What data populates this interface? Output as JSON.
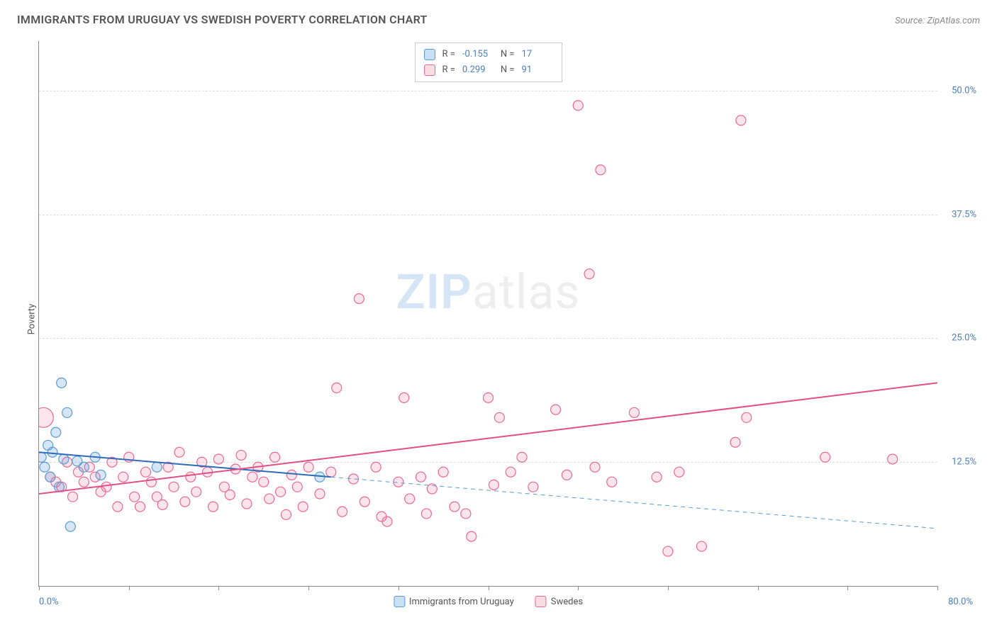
{
  "title": "IMMIGRANTS FROM URUGUAY VS SWEDISH POVERTY CORRELATION CHART",
  "source_label": "Source:",
  "source_value": "ZipAtlas.com",
  "watermark_zip": "ZIP",
  "watermark_atlas": "atlas",
  "y_axis_label": "Poverty",
  "chart": {
    "type": "scatter",
    "xlim": [
      0,
      80
    ],
    "ylim": [
      0,
      55
    ],
    "x_tick_positions": [
      0,
      8,
      16,
      24,
      32,
      40,
      48,
      56,
      64,
      72,
      80
    ],
    "x_label_min": "0.0%",
    "x_label_max": "80.0%",
    "y_ticks": [
      {
        "pos": 12.5,
        "label": "12.5%"
      },
      {
        "pos": 25.0,
        "label": "25.0%"
      },
      {
        "pos": 37.5,
        "label": "37.5%"
      },
      {
        "pos": 50.0,
        "label": "50.0%"
      }
    ],
    "background_color": "#ffffff",
    "grid_color": "#dddddd",
    "axis_color": "#888888",
    "marker_radius": 7,
    "marker_stroke_width": 1.2,
    "line_width": 2
  },
  "series": [
    {
      "name": "Immigrants from Uruguay",
      "swatch_fill": "#c9dff4",
      "swatch_stroke": "#5b9bd5",
      "marker_fill": "rgba(91,155,213,0.25)",
      "marker_stroke": "#5b9bd5",
      "line_color": "#2e6bb8",
      "dash_color": "#5b9bd5",
      "r_label": "R =",
      "r_value": "-0.155",
      "n_label": "N =",
      "n_value": "17",
      "trend": {
        "x1": 0,
        "y1": 13.5,
        "x2": 26,
        "y2": 11.0
      },
      "trend_dash": {
        "x1": 26,
        "y1": 11.0,
        "x2": 80,
        "y2": 5.8
      },
      "points": [
        [
          0.2,
          13.0
        ],
        [
          0.5,
          12.0
        ],
        [
          0.8,
          14.2
        ],
        [
          1.0,
          11.0
        ],
        [
          1.2,
          13.5
        ],
        [
          1.5,
          15.5
        ],
        [
          1.8,
          10.0
        ],
        [
          2.0,
          20.5
        ],
        [
          2.2,
          12.8
        ],
        [
          2.5,
          17.5
        ],
        [
          2.8,
          6.0
        ],
        [
          3.4,
          12.6
        ],
        [
          4.0,
          12.0
        ],
        [
          5.0,
          13.0
        ],
        [
          5.5,
          11.2
        ],
        [
          10.5,
          12.0
        ],
        [
          25.0,
          11.0
        ]
      ]
    },
    {
      "name": "Swedes",
      "swatch_fill": "#fadce4",
      "swatch_stroke": "#e86993",
      "marker_fill": "rgba(232,105,147,0.18)",
      "marker_stroke": "#e86993",
      "line_color": "#e05084",
      "r_label": "R =",
      "r_value": "0.299",
      "n_label": "N =",
      "n_value": "91",
      "trend": {
        "x1": 0,
        "y1": 9.3,
        "x2": 80,
        "y2": 20.5
      },
      "points": [
        [
          0.4,
          17.0,
          14
        ],
        [
          1.0,
          11.0
        ],
        [
          1.5,
          10.5
        ],
        [
          2.0,
          10.0
        ],
        [
          2.5,
          12.5
        ],
        [
          3.0,
          9.0
        ],
        [
          3.5,
          11.5
        ],
        [
          4.0,
          10.5
        ],
        [
          4.5,
          12.0
        ],
        [
          5.0,
          11.0
        ],
        [
          5.5,
          9.5
        ],
        [
          6.0,
          10.0
        ],
        [
          6.5,
          12.5
        ],
        [
          7.0,
          8.0
        ],
        [
          7.5,
          11.0
        ],
        [
          8.0,
          13.0
        ],
        [
          8.5,
          9.0
        ],
        [
          9.0,
          8.0
        ],
        [
          9.5,
          11.5
        ],
        [
          10.0,
          10.5
        ],
        [
          10.5,
          9.0
        ],
        [
          11.0,
          8.2
        ],
        [
          11.5,
          12.0
        ],
        [
          12.0,
          10.0
        ],
        [
          12.5,
          13.5
        ],
        [
          13.0,
          8.5
        ],
        [
          13.5,
          11.0
        ],
        [
          14.0,
          9.5
        ],
        [
          14.5,
          12.5
        ],
        [
          15.0,
          11.5
        ],
        [
          15.5,
          8.0
        ],
        [
          16.0,
          12.8
        ],
        [
          16.5,
          10.0
        ],
        [
          17.0,
          9.2
        ],
        [
          17.5,
          11.8
        ],
        [
          18.0,
          13.2
        ],
        [
          18.5,
          8.3
        ],
        [
          19.0,
          11.0
        ],
        [
          19.5,
          12.0
        ],
        [
          20.0,
          10.5
        ],
        [
          20.5,
          8.8
        ],
        [
          21.0,
          13.0
        ],
        [
          21.5,
          9.5
        ],
        [
          22.0,
          7.2
        ],
        [
          22.5,
          11.2
        ],
        [
          23.0,
          10.0
        ],
        [
          23.5,
          8.0
        ],
        [
          24.0,
          12.0
        ],
        [
          25.0,
          9.3
        ],
        [
          26.0,
          11.5
        ],
        [
          26.5,
          20.0
        ],
        [
          27.0,
          7.5
        ],
        [
          28.0,
          10.8
        ],
        [
          28.5,
          29.0
        ],
        [
          29.0,
          8.5
        ],
        [
          30.0,
          12.0
        ],
        [
          30.5,
          7.0
        ],
        [
          31.0,
          6.5
        ],
        [
          32.0,
          10.5
        ],
        [
          32.5,
          19.0
        ],
        [
          33.0,
          8.8
        ],
        [
          34.0,
          11.0
        ],
        [
          34.5,
          7.3
        ],
        [
          35.0,
          9.8
        ],
        [
          36.0,
          11.5
        ],
        [
          37.0,
          8.0
        ],
        [
          38.0,
          7.3
        ],
        [
          38.5,
          5.0
        ],
        [
          40.0,
          19.0
        ],
        [
          40.5,
          10.2
        ],
        [
          41.0,
          17.0
        ],
        [
          42.0,
          11.5
        ],
        [
          43.0,
          13.0
        ],
        [
          44.0,
          10.0
        ],
        [
          46.0,
          17.8
        ],
        [
          47.0,
          11.2
        ],
        [
          48.0,
          48.5
        ],
        [
          49.0,
          31.5
        ],
        [
          49.5,
          12.0
        ],
        [
          50.0,
          42.0
        ],
        [
          51.0,
          10.5
        ],
        [
          53.0,
          17.5
        ],
        [
          55.0,
          11.0
        ],
        [
          56.0,
          3.5
        ],
        [
          57.0,
          11.5
        ],
        [
          59.0,
          4.0
        ],
        [
          62.0,
          14.5
        ],
        [
          62.5,
          47.0
        ],
        [
          63.0,
          17.0
        ],
        [
          70.0,
          13.0
        ],
        [
          76.0,
          12.8
        ]
      ]
    }
  ]
}
